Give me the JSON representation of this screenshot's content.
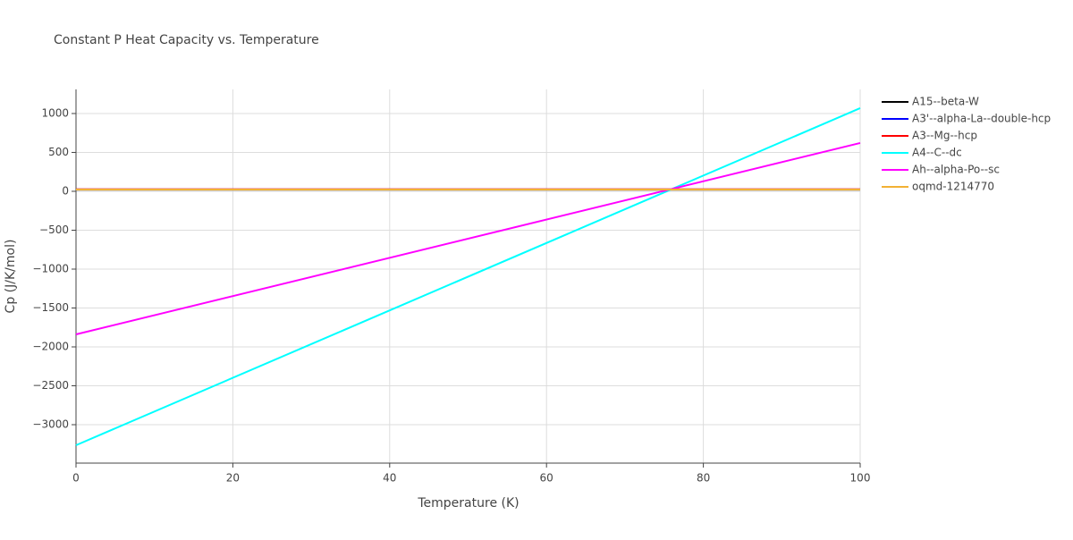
{
  "chart_data": {
    "type": "line",
    "title": "Constant P Heat Capacity vs. Temperature",
    "x_label": "Temperature (K)",
    "y_label": "Cp (J/K/mol)",
    "x": [
      0,
      100
    ],
    "series": [
      {
        "name": "A15--beta-W",
        "color": "#000000",
        "values": [
          22,
          22
        ]
      },
      {
        "name": "A3'--alpha-La--double-hcp",
        "color": "#0000ff",
        "values": [
          24,
          24
        ]
      },
      {
        "name": "A3--Mg--hcp",
        "color": "#ff0000",
        "values": [
          25,
          25
        ]
      },
      {
        "name": "A4--C--dc",
        "color": "#00ffff",
        "values": [
          -3264,
          1069
        ]
      },
      {
        "name": "Ah--alpha-Po--sc",
        "color": "#ff00ff",
        "values": [
          -1839,
          621
        ]
      },
      {
        "name": "oqmd-1214770",
        "color": "#f2b134",
        "values": [
          23,
          23
        ]
      }
    ],
    "xlim": [
      0,
      100
    ],
    "xticks": [
      0,
      20,
      40,
      60,
      80,
      100
    ],
    "ylim": [
      -3494,
      1310
    ],
    "yticks": [
      {
        "value": -3000,
        "label": "−3000"
      },
      {
        "value": -2500,
        "label": "−2500"
      },
      {
        "value": -2000,
        "label": "−2000"
      },
      {
        "value": -1500,
        "label": "−1500"
      },
      {
        "value": -1000,
        "label": "−1000"
      },
      {
        "value": -500,
        "label": "−500"
      },
      0,
      500,
      1000
    ],
    "grid": true,
    "legend": "right"
  }
}
